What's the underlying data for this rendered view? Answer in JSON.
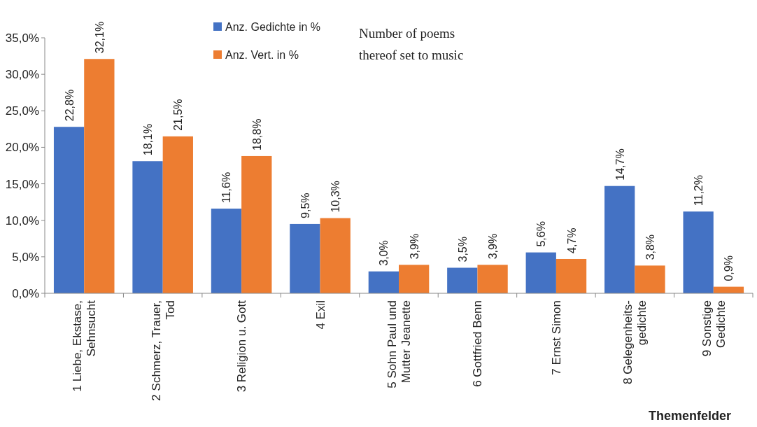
{
  "chart_data": {
    "type": "bar",
    "xlabel": "Themenfelder",
    "categories": [
      "1 Liebe, Ekstase,\nSehnsucht",
      "2 Schmerz, Trauer,\nTod",
      "3 Religion u. Gott",
      "4 Exil",
      "5 Sohn Paul und\nMutter Jeanette",
      "6 Gottfried Benn",
      "7 Ernst Simon",
      "8 Gelegenheits-\ngedichte",
      "9 Sonstige\nGedichte"
    ],
    "series": [
      {
        "name": "Anz. Gedichte in %",
        "color": "#4472c4",
        "values": [
          22.8,
          18.1,
          11.6,
          9.5,
          3.0,
          3.5,
          5.6,
          14.7,
          11.2
        ],
        "value_labels": [
          "22,8%",
          "18,1%",
          "11,6%",
          "9,5%",
          "3,0%",
          "3,5%",
          "5,6%",
          "14,7%",
          "11,2%"
        ]
      },
      {
        "name": "Anz. Vert. in %",
        "color": "#ed7d31",
        "values": [
          32.1,
          21.5,
          18.8,
          10.3,
          3.9,
          3.9,
          4.7,
          3.8,
          0.9
        ],
        "value_labels": [
          "32,1%",
          "21,5%",
          "18,8%",
          "10,3%",
          "3,9%",
          "3,9%",
          "4,7%",
          "3,8%",
          "0,9%"
        ]
      }
    ],
    "ylim": [
      0,
      35
    ],
    "yticks": [
      {
        "value": 0,
        "label": "0,0%"
      },
      {
        "value": 5,
        "label": "5,0%"
      },
      {
        "value": 10,
        "label": "10,0%"
      },
      {
        "value": 15,
        "label": "15,0%"
      },
      {
        "value": 20,
        "label": "20,0%"
      },
      {
        "value": 25,
        "label": "25,0%"
      },
      {
        "value": 30,
        "label": "30,0%"
      },
      {
        "value": 35,
        "label": "35,0%"
      }
    ],
    "legend": "top",
    "grid": false,
    "annotations": [
      "Number of poems\nthereof set to music"
    ]
  }
}
